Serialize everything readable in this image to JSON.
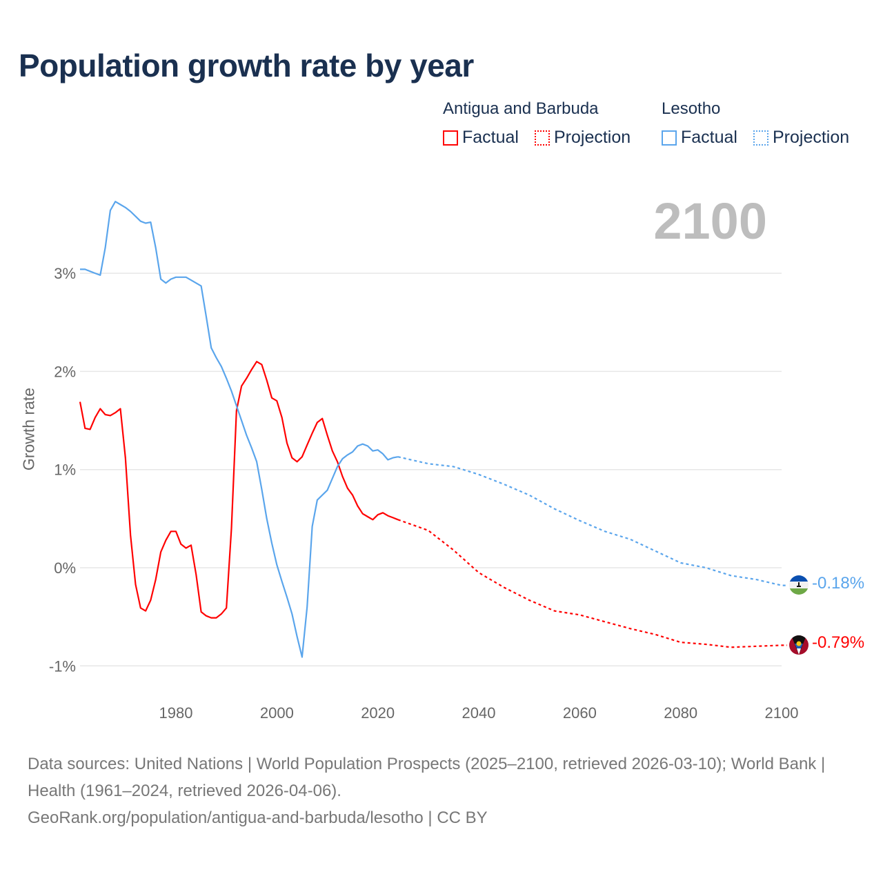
{
  "title": "Population growth rate by year",
  "legend": {
    "groups": [
      {
        "name": "Antigua and Barbuda",
        "factual": "Factual",
        "projection": "Projection",
        "color": "#ff0000"
      },
      {
        "name": "Lesotho",
        "factual": "Factual",
        "projection": "Projection",
        "color": "#5aa5ec"
      }
    ]
  },
  "year_display": "2100",
  "end_labels": {
    "lesotho": "-0.18%",
    "antigua": "-0.79%"
  },
  "footer": {
    "sources": "Data sources: United Nations | World Population Prospects (2025–2100, retrieved 2026-03-10); World Bank | Health (1961–2024, retrieved 2026-04-06).",
    "url": "GeoRank.org/population/antigua-and-barbuda/lesotho | CC BY"
  },
  "chart_data": {
    "type": "line",
    "title": "Population growth rate by year",
    "xlabel": "",
    "ylabel": "Growth rate",
    "xlim": [
      1961,
      2100
    ],
    "ylim": [
      -1.3,
      3.9
    ],
    "x_ticks": [
      1980,
      2000,
      2020,
      2040,
      2060,
      2080,
      2100
    ],
    "x_tick_labels": [
      "1980",
      "2000",
      "2020",
      "2040",
      "2060",
      "2080",
      "2100"
    ],
    "y_ticks": [
      3,
      2,
      1,
      0,
      -1
    ],
    "y_tick_labels": [
      "3%",
      "2%",
      "1%",
      "0%",
      "-1%"
    ],
    "grid": true,
    "legend_position": "top-right",
    "series": [
      {
        "name": "Antigua and Barbuda",
        "color": "#ff0000",
        "factual": {
          "start_year": 1961,
          "values": [
            1.69,
            1.42,
            1.41,
            1.53,
            1.62,
            1.56,
            1.55,
            1.58,
            1.62,
            1.12,
            0.33,
            -0.17,
            -0.41,
            -0.44,
            -0.33,
            -0.12,
            0.16,
            0.28,
            0.37,
            0.37,
            0.24,
            0.2,
            0.23,
            -0.07,
            -0.45,
            -0.49,
            -0.51,
            -0.51,
            -0.47,
            -0.41,
            0.4,
            1.6,
            1.85,
            1.93,
            2.02,
            2.1,
            2.07,
            1.91,
            1.73,
            1.7,
            1.53,
            1.27,
            1.12,
            1.08,
            1.13,
            1.25,
            1.37,
            1.48,
            1.52,
            1.35,
            1.19,
            1.08,
            0.93,
            0.81,
            0.74,
            0.63,
            0.55,
            0.52,
            0.49,
            0.54,
            0.56,
            0.53,
            0.51,
            0.49
          ]
        },
        "projection": {
          "x": [
            2024,
            2030,
            2035,
            2040,
            2045,
            2050,
            2055,
            2060,
            2065,
            2070,
            2075,
            2080,
            2085,
            2090,
            2095,
            2100
          ],
          "values": [
            0.49,
            0.38,
            0.18,
            -0.05,
            -0.2,
            -0.33,
            -0.44,
            -0.48,
            -0.55,
            -0.62,
            -0.68,
            -0.76,
            -0.78,
            -0.81,
            -0.8,
            -0.79
          ]
        }
      },
      {
        "name": "Lesotho",
        "color": "#5aa5ec",
        "factual": {
          "start_year": 1961,
          "values": [
            3.04,
            3.04,
            3.02,
            3.0,
            2.98,
            3.26,
            3.64,
            3.73,
            3.7,
            3.67,
            3.63,
            3.58,
            3.53,
            3.51,
            3.52,
            3.26,
            2.94,
            2.9,
            2.94,
            2.96,
            2.96,
            2.96,
            2.93,
            2.9,
            2.87,
            2.56,
            2.24,
            2.14,
            2.05,
            1.93,
            1.8,
            1.65,
            1.5,
            1.35,
            1.22,
            1.08,
            0.8,
            0.5,
            0.25,
            0.03,
            -0.14,
            -0.3,
            -0.47,
            -0.7,
            -0.91,
            -0.4,
            0.42,
            0.69,
            0.74,
            0.79,
            0.91,
            1.03,
            1.11,
            1.15,
            1.18,
            1.24,
            1.26,
            1.24,
            1.19,
            1.2,
            1.16,
            1.1,
            1.12,
            1.13
          ]
        },
        "projection": {
          "x": [
            2024,
            2030,
            2035,
            2040,
            2045,
            2050,
            2055,
            2060,
            2065,
            2070,
            2075,
            2080,
            2085,
            2090,
            2095,
            2100
          ],
          "values": [
            1.13,
            1.06,
            1.03,
            0.95,
            0.85,
            0.74,
            0.6,
            0.48,
            0.37,
            0.29,
            0.17,
            0.05,
            0.0,
            -0.08,
            -0.12,
            -0.18
          ]
        }
      }
    ]
  }
}
